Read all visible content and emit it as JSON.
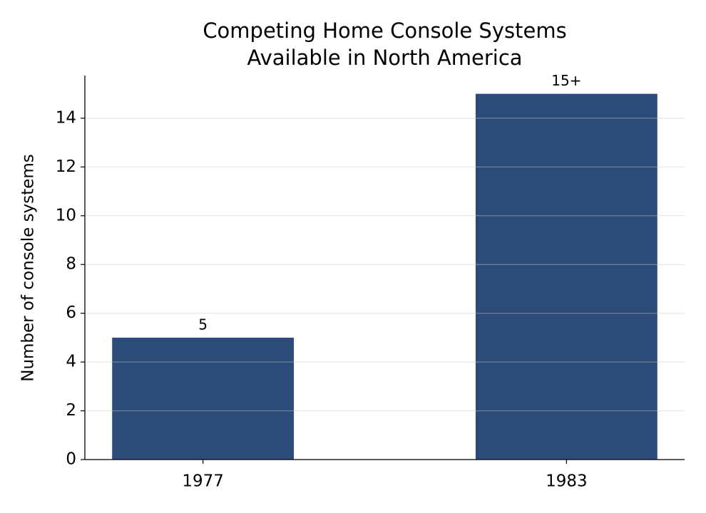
{
  "chart_data": {
    "type": "bar",
    "title": "Competing Home Console Systems\nAvailable in North America",
    "y_label": "Number of console systems",
    "categories": [
      "1977",
      "1983"
    ],
    "values": [
      5,
      15
    ],
    "value_labels": [
      "5",
      "15+"
    ],
    "color": "#2d4b78",
    "ylim": [
      0,
      15.75
    ],
    "yticks": [
      0,
      2,
      4,
      6,
      8,
      10,
      12,
      14
    ],
    "grid": true
  }
}
